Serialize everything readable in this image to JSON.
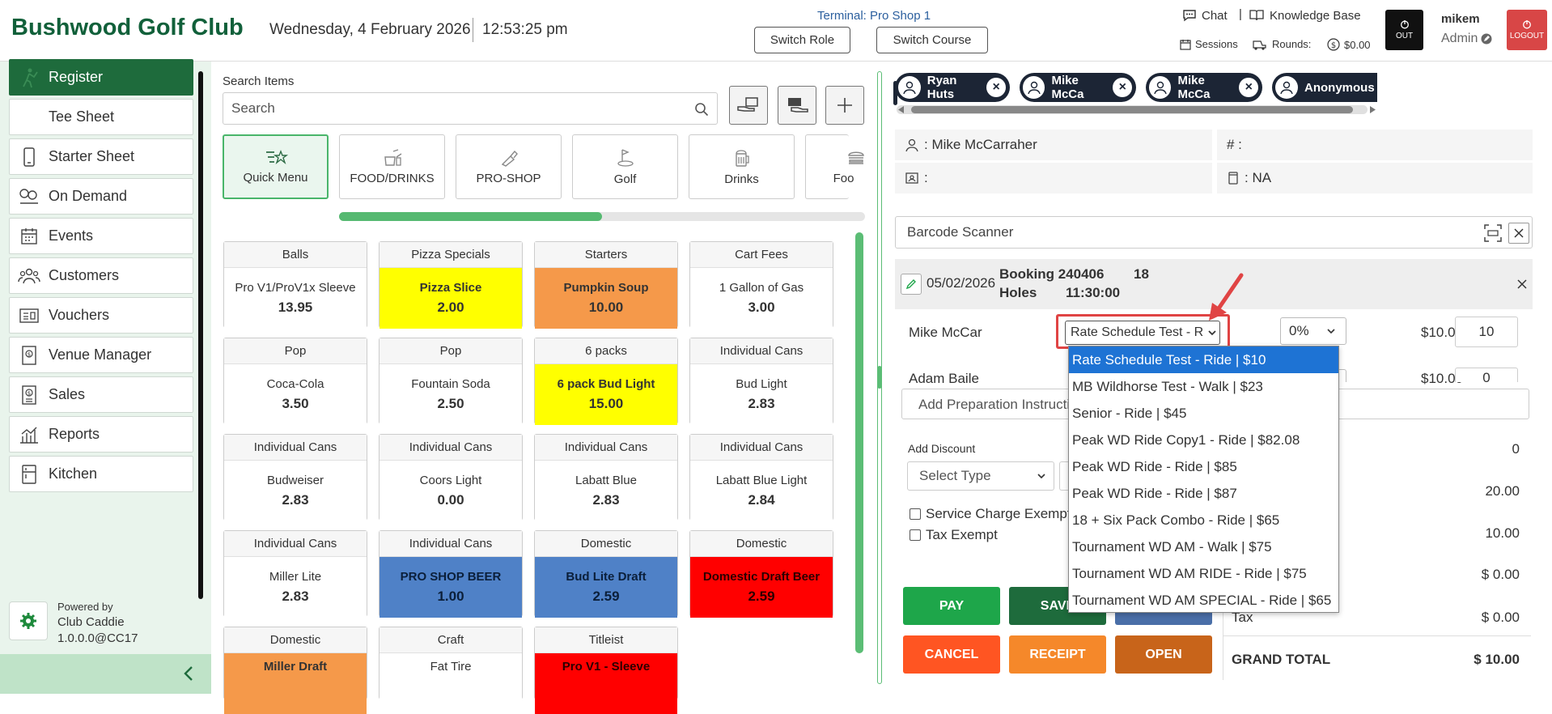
{
  "header": {
    "club_name": "Bushwood Golf Club",
    "date": "Wednesday, 4 February 2026",
    "time": "12:53:25 pm",
    "terminal": "Terminal: Pro Shop 1",
    "switch_role": "Switch Role",
    "switch_course": "Switch Course",
    "chat": "Chat",
    "knowledge_base": "Knowledge Base",
    "sessions": "Sessions",
    "rounds": "Rounds:",
    "balance": "$0.00",
    "out": "OUT",
    "user": "mikem",
    "role": "Admin",
    "logout": "LOGOUT"
  },
  "sidebar": {
    "items": [
      {
        "label": "Register",
        "icon": "golfer-icon"
      },
      {
        "label": "Tee Sheet",
        "icon": "tee-sheet-icon"
      },
      {
        "label": "Starter Sheet",
        "icon": "phone-icon"
      },
      {
        "label": "On Demand",
        "icon": "on-demand-icon"
      },
      {
        "label": "Events",
        "icon": "calendar-icon"
      },
      {
        "label": "Customers",
        "icon": "customers-icon"
      },
      {
        "label": "Vouchers",
        "icon": "voucher-icon"
      },
      {
        "label": "Venue Manager",
        "icon": "venue-icon"
      },
      {
        "label": "Sales",
        "icon": "sales-icon"
      },
      {
        "label": "Reports",
        "icon": "reports-icon"
      },
      {
        "label": "Kitchen",
        "icon": "kitchen-icon"
      }
    ],
    "powered_by": "Powered by",
    "brand": "Club Caddie",
    "version": "1.0.0.0@CC17"
  },
  "search": {
    "label": "Search Items",
    "placeholder": "Search"
  },
  "categories": [
    {
      "label": "Quick Menu",
      "active": true
    },
    {
      "label": "FOOD/DRINKS",
      "active": false
    },
    {
      "label": "PRO-SHOP",
      "active": false
    },
    {
      "label": "Golf",
      "active": false
    },
    {
      "label": "Drinks",
      "active": false
    },
    {
      "label": "Foo",
      "active": false
    }
  ],
  "category_scroll_fraction": 0.5,
  "items": [
    {
      "category": "Balls",
      "name": "Pro V1/ProV1x Sleeve",
      "price": "13.95",
      "color": "#ffffff"
    },
    {
      "category": "Pizza Specials",
      "name": "Pizza Slice",
      "price": "2.00",
      "color": "#ffff00"
    },
    {
      "category": "Starters",
      "name": "Pumpkin Soup",
      "price": "10.00",
      "color": "#f5994a"
    },
    {
      "category": "Cart Fees",
      "name": "1 Gallon of Gas",
      "price": "3.00",
      "color": "#ffffff"
    },
    {
      "category": "Pop",
      "name": "Coca-Cola",
      "price": "3.50",
      "color": "#ffffff"
    },
    {
      "category": "Pop",
      "name": "Fountain Soda",
      "price": "2.50",
      "color": "#ffffff"
    },
    {
      "category": "6 packs",
      "name": "6 pack Bud Light",
      "price": "15.00",
      "color": "#ffff00"
    },
    {
      "category": "Individual Cans",
      "name": "Bud Light",
      "price": "2.83",
      "color": "#ffffff"
    },
    {
      "category": "Individual Cans",
      "name": "Budweiser",
      "price": "2.83",
      "color": "#ffffff"
    },
    {
      "category": "Individual Cans",
      "name": "Coors Light",
      "price": "0.00",
      "color": "#ffffff"
    },
    {
      "category": "Individual Cans",
      "name": "Labatt Blue",
      "price": "2.83",
      "color": "#ffffff"
    },
    {
      "category": "Individual Cans",
      "name": "Labatt Blue Light",
      "price": "2.84",
      "color": "#ffffff"
    },
    {
      "category": "Individual Cans",
      "name": "Miller Lite",
      "price": "2.83",
      "color": "#ffffff"
    },
    {
      "category": "Individual Cans",
      "name": "PRO SHOP BEER",
      "price": "1.00",
      "color": "#4f81c7"
    },
    {
      "category": "Domestic",
      "name": "Bud Lite Draft",
      "price": "2.59",
      "color": "#4f81c7"
    },
    {
      "category": "Domestic",
      "name": "Domestic Draft Beer",
      "price": "2.59",
      "color": "#ff0000"
    },
    {
      "category": "Domestic",
      "name": "Miller Draft",
      "price": "",
      "color": "#f5994a"
    },
    {
      "category": "Craft",
      "name": "Fat Tire",
      "price": "",
      "color": "#ffffff"
    },
    {
      "category": "Titleist",
      "name": "Pro V1 - Sleeve",
      "price": "",
      "color": "#ff0000"
    }
  ],
  "customers": [
    {
      "name": "Ryan Huts"
    },
    {
      "name": "Mike McCa"
    },
    {
      "name": "Mike McCa"
    },
    {
      "name": "Anonymous"
    }
  ],
  "customer_info": {
    "name": ": Mike McCarraher",
    "number": "# :",
    "id": ":",
    "card": ": NA"
  },
  "barcode": {
    "placeholder": "Barcode Scanner"
  },
  "booking": {
    "date": "05/02/2026",
    "label": "Booking 240406",
    "holes_num": "18",
    "holes": "Holes",
    "time": "11:30:00"
  },
  "booking_lines": [
    {
      "player": "Mike McCar",
      "rate": "Rate Schedule Test - R",
      "discount": "0%",
      "price": "$10.00",
      "qty": "10"
    },
    {
      "player": "Adam Baile",
      "rate": "",
      "discount": "",
      "price": "$10.00",
      "qty": "0"
    }
  ],
  "rate_options": [
    "Rate Schedule Test - Ride | $10",
    "MB Wildhorse Test - Walk | $23",
    "Senior - Ride | $45",
    "Peak WD Ride Copy1 - Ride | $82.08",
    "Peak WD Ride - Ride | $85",
    "Peak WD Ride - Ride | $87",
    "18 + Six Pack Combo - Ride | $65",
    "Tournament WD AM - Walk | $75",
    "Tournament WD AM RIDE - Ride | $75",
    "Tournament WD AM SPECIAL - Ride | $65"
  ],
  "prep": {
    "placeholder": "Add Preparation Instructions"
  },
  "discount": {
    "label": "Add Discount",
    "select_type": "Select Type"
  },
  "checks": {
    "service_charge": "Service Charge Exempt",
    "tax_exempt": "Tax Exempt"
  },
  "actions": {
    "pay": "PAY",
    "save": "SAVE",
    "cancel": "CANCEL",
    "receipt": "RECEIPT",
    "open": "OPEN"
  },
  "totals": {
    "v1": "0",
    "v2": "20.00",
    "v3": "10.00",
    "v4": "$ 0.00",
    "tax_label": "Tax",
    "tax": "$ 0.00",
    "grand_label": "GRAND TOTAL",
    "grand": "$ 10.00"
  },
  "colors": {
    "brand_green": "#11603a",
    "active_nav": "#1e6b3c",
    "pay": "#1ea64a",
    "save": "#1e6b3c",
    "cancel": "#ff5522",
    "receipt": "#f5882a",
    "open": "#c8641a",
    "logout": "#d84646",
    "highlight": "#e04444",
    "selected_option": "#1e73d4"
  }
}
